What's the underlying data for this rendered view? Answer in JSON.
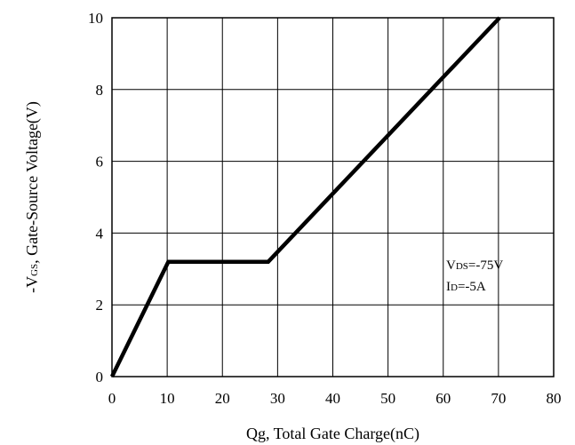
{
  "chart_data": {
    "type": "line",
    "xlabel": "Qg, Total Gate Charge(nC)",
    "ylabel": {
      "prefix": "-V",
      "subscript": "GS",
      "suffix": ", Gate-Source Voltage(V)"
    },
    "xlim": [
      0,
      80
    ],
    "ylim": [
      0,
      10
    ],
    "xticks": [
      0,
      10,
      20,
      30,
      40,
      50,
      60,
      70,
      80
    ],
    "yticks": [
      0,
      2,
      4,
      6,
      8,
      10
    ],
    "grid": true,
    "legend": "none",
    "series": [
      {
        "x": [
          0,
          10.2,
          28.3,
          70.2
        ],
        "y": [
          0,
          3.2,
          3.2,
          10
        ],
        "color": "#000000"
      }
    ],
    "annotations": [
      {
        "prefix": "V",
        "subscript": "DS",
        "suffix": "=-75V"
      },
      {
        "prefix": "I",
        "subscript": "D",
        "suffix": "=-5A"
      }
    ]
  }
}
